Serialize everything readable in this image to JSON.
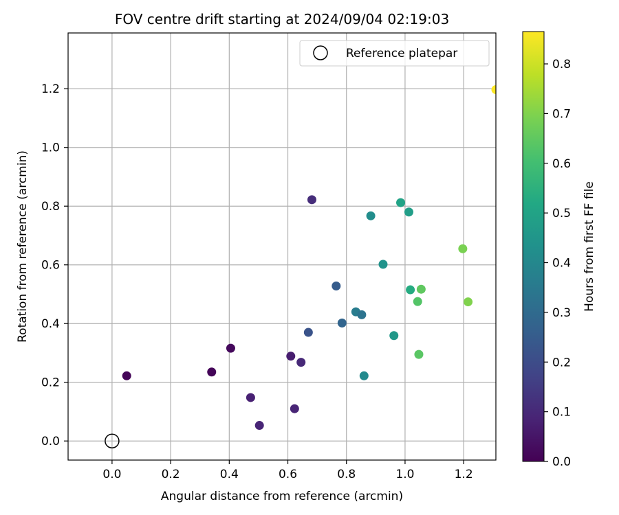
{
  "chart_data": {
    "type": "scatter",
    "title": "FOV centre drift starting at 2024/09/04 02:19:03",
    "xlabel": "Angular distance from reference (arcmin)",
    "ylabel": "Rotation from reference (arcmin)",
    "xlim": [
      -0.15,
      1.31
    ],
    "ylim": [
      -0.065,
      1.39
    ],
    "xticks": [
      "0.0",
      "0.2",
      "0.4",
      "0.6",
      "0.8",
      "1.0",
      "1.2"
    ],
    "yticks": [
      "0.0",
      "0.2",
      "0.4",
      "0.6",
      "0.8",
      "1.0",
      "1.2"
    ],
    "grid": true,
    "legend": {
      "placement": "top-right",
      "entries": [
        "Reference platepar"
      ]
    },
    "reference_point": {
      "x": 0.0,
      "y": 0.0
    },
    "colorbar": {
      "label": "Hours from first FF file",
      "colormap": "viridis",
      "range": [
        0.0,
        0.865
      ],
      "ticks": [
        "0.0",
        "0.1",
        "0.2",
        "0.3",
        "0.4",
        "0.5",
        "0.6",
        "0.7",
        "0.8"
      ]
    },
    "points": [
      {
        "x": 0.05,
        "y": 0.222,
        "c": 0.01
      },
      {
        "x": 0.34,
        "y": 0.235,
        "c": 0.01
      },
      {
        "x": 0.405,
        "y": 0.316,
        "c": 0.02
      },
      {
        "x": 0.473,
        "y": 0.148,
        "c": 0.08
      },
      {
        "x": 0.503,
        "y": 0.053,
        "c": 0.09
      },
      {
        "x": 0.61,
        "y": 0.289,
        "c": 0.07
      },
      {
        "x": 0.623,
        "y": 0.11,
        "c": 0.09
      },
      {
        "x": 0.645,
        "y": 0.268,
        "c": 0.1
      },
      {
        "x": 0.682,
        "y": 0.822,
        "c": 0.11
      },
      {
        "x": 0.67,
        "y": 0.37,
        "c": 0.22
      },
      {
        "x": 0.765,
        "y": 0.528,
        "c": 0.25
      },
      {
        "x": 0.785,
        "y": 0.402,
        "c": 0.28
      },
      {
        "x": 0.832,
        "y": 0.44,
        "c": 0.36
      },
      {
        "x": 0.852,
        "y": 0.43,
        "c": 0.33
      },
      {
        "x": 0.86,
        "y": 0.222,
        "c": 0.41
      },
      {
        "x": 0.883,
        "y": 0.767,
        "c": 0.42
      },
      {
        "x": 0.925,
        "y": 0.602,
        "c": 0.44
      },
      {
        "x": 0.962,
        "y": 0.359,
        "c": 0.46
      },
      {
        "x": 0.985,
        "y": 0.812,
        "c": 0.5
      },
      {
        "x": 1.013,
        "y": 0.78,
        "c": 0.48
      },
      {
        "x": 1.018,
        "y": 0.515,
        "c": 0.53
      },
      {
        "x": 1.043,
        "y": 0.475,
        "c": 0.63
      },
      {
        "x": 1.047,
        "y": 0.295,
        "c": 0.64
      },
      {
        "x": 1.055,
        "y": 0.517,
        "c": 0.65
      },
      {
        "x": 1.197,
        "y": 0.655,
        "c": 0.69
      },
      {
        "x": 1.215,
        "y": 0.474,
        "c": 0.7
      },
      {
        "x": 1.31,
        "y": 1.197,
        "c": 0.865
      }
    ]
  }
}
